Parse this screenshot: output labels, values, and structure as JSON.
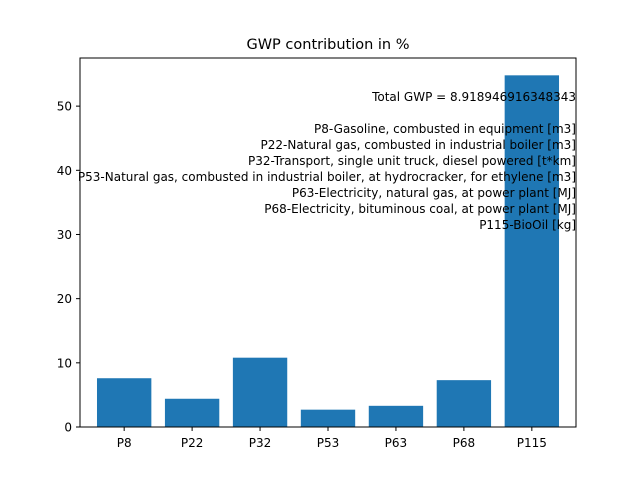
{
  "chart_data": {
    "type": "bar",
    "title": "GWP contribution in %",
    "xlabel": "",
    "ylabel": "",
    "categories": [
      "P8",
      "P22",
      "P32",
      "P53",
      "P63",
      "P68",
      "P115"
    ],
    "values": [
      7.6,
      4.4,
      10.8,
      2.7,
      3.3,
      7.3,
      54.8
    ],
    "ylim": [
      0,
      57.5
    ],
    "yticks": [
      0,
      10,
      20,
      30,
      40,
      50
    ],
    "grid": false,
    "bar_color": "#1f77b4",
    "annotation_lines": [
      "Total GWP = 8.918946916348343",
      "",
      "P8-Gasoline, combusted in equipment [m3]",
      "P22-Natural gas, combusted in industrial boiler [m3]",
      "P32-Transport, single unit truck, diesel powered [t*km]",
      "P53-Natural gas, combusted in industrial boiler, at hydrocracker, for ethylene [m3]",
      "P63-Electricity, natural gas, at power plant [MJ]",
      "P68-Electricity, bituminous coal, at power plant [MJ]",
      "P115-BioOil [kg]"
    ]
  }
}
